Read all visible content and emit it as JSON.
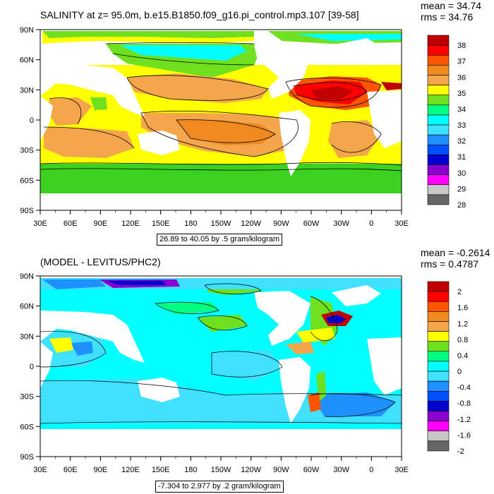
{
  "panels": [
    {
      "title": "SALINITY at z=  95.0m, b.e15.B1850.f09_g16.pi_control.mp3.107 [39-58]",
      "mean_text": "mean = 34.74",
      "rms_text": "rms = 34.76",
      "info": "26.89 to 40.05 by .5 gram/kilogram",
      "colorbar": {
        "labels": [
          "38",
          "37",
          "36",
          "35",
          "34",
          "33",
          "32",
          "31",
          "30",
          "29",
          "28"
        ],
        "colors": [
          "#c00000",
          "#ff0000",
          "#ff5500",
          "#f08a20",
          "#f4a64a",
          "#ffff00",
          "#6ee01e",
          "#00ff80",
          "#00ffff",
          "#40e0ff",
          "#1e90ff",
          "#0050ff",
          "#0000d0",
          "#8a00d0",
          "#ff00ff",
          "#c8c8c8",
          "#666666"
        ]
      }
    },
    {
      "title": "(MODEL - LEVITUS/PHC2)",
      "mean_text": "mean = -0.2614",
      "rms_text": "rms = 0.4787",
      "info": "-7.304 to 2.977 by .2 gram/kilogram",
      "colorbar": {
        "labels": [
          "2",
          "1.6",
          "1.2",
          "0.8",
          "0.4",
          "0",
          "-0.4",
          "-0.8",
          "-1.2",
          "-1.6",
          "-2"
        ],
        "colors": [
          "#c00000",
          "#ff0000",
          "#ff5500",
          "#f08a20",
          "#f4a64a",
          "#ffff00",
          "#6ee01e",
          "#00ff80",
          "#00ffff",
          "#40e0ff",
          "#1e90ff",
          "#0050ff",
          "#0000d0",
          "#8a00d0",
          "#ff00ff",
          "#c8c8c8",
          "#666666"
        ]
      }
    }
  ],
  "axes": {
    "lat_labels": [
      "90N",
      "60N",
      "30N",
      "0",
      "30S",
      "60S",
      "90S"
    ],
    "lon_labels": [
      "30E",
      "60E",
      "90E",
      "120E",
      "150E",
      "180",
      "150W",
      "120W",
      "90W",
      "60W",
      "30W",
      "0",
      "30E"
    ]
  }
}
